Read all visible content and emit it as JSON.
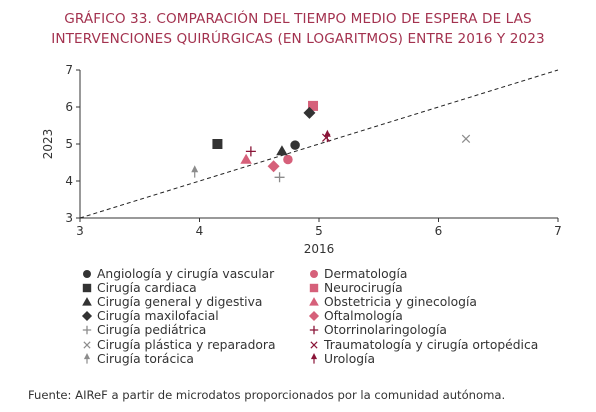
{
  "title_line1": "GRÁFICO 33. COMPARACIÓN DEL TIEMPO MEDIO DE ESPERA DE LAS",
  "title_line2": "INTERVENCIONES QUIRÚRGICAS (EN LOGARITMOS) ENTRE 2016 Y 2023",
  "source": "Fuente: AIReF a partir de microdatos proporcionados por la comunidad autónoma.",
  "colors": {
    "dark": "#333333",
    "pink": "#d6607a",
    "crimson": "#8a1538",
    "gray": "#8c8c8c",
    "title": "#a3324f"
  },
  "chart_data": {
    "type": "scatter",
    "xlabel": "2016",
    "ylabel": "2023",
    "xlim": [
      3,
      7
    ],
    "ylim": [
      3,
      7
    ],
    "xticks": [
      "3",
      "4",
      "5",
      "6",
      "7"
    ],
    "yticks": [
      "3",
      "4",
      "5",
      "6",
      "7"
    ],
    "reference_line": "dashed 45-degree line (y = x)",
    "grid": false,
    "legend_position": "bottom, two columns",
    "series": [
      {
        "name": "Angiología y cirugía vascular",
        "marker": "circle",
        "color": "#333333",
        "x": 4.8,
        "y": 4.97
      },
      {
        "name": "Dermatología",
        "marker": "circle",
        "color": "#d6607a",
        "x": 4.74,
        "y": 4.58
      },
      {
        "name": "Cirugía cardiaca",
        "marker": "square",
        "color": "#333333",
        "x": 4.15,
        "y": 5.0
      },
      {
        "name": "Neurocirugía",
        "marker": "square",
        "color": "#d6607a",
        "x": 4.95,
        "y": 6.03
      },
      {
        "name": "Cirugía general y digestiva",
        "marker": "triangle",
        "color": "#333333",
        "x": 4.69,
        "y": 4.81
      },
      {
        "name": "Obstetricia y ginecología",
        "marker": "triangle",
        "color": "#d6607a",
        "x": 4.39,
        "y": 4.58
      },
      {
        "name": "Cirugía maxilofacial",
        "marker": "diamond",
        "color": "#333333",
        "x": 4.92,
        "y": 5.84
      },
      {
        "name": "Oftalmología",
        "marker": "diamond",
        "color": "#d6607a",
        "x": 4.62,
        "y": 4.4
      },
      {
        "name": "Cirugía pediátrica",
        "marker": "plus",
        "color": "#8c8c8c",
        "x": 4.67,
        "y": 4.1
      },
      {
        "name": "Otorrinolaringología",
        "marker": "plus",
        "color": "#8a1538",
        "x": 4.43,
        "y": 4.8
      },
      {
        "name": "Cirugía plástica y reparadora",
        "marker": "x",
        "color": "#8c8c8c",
        "x": 6.23,
        "y": 5.14
      },
      {
        "name": "Traumatología y cirugía ortopédica",
        "marker": "x",
        "color": "#8a1538",
        "x": 5.06,
        "y": 5.17
      },
      {
        "name": "Cirugía torácica",
        "marker": "spike",
        "color": "#8c8c8c",
        "x": 3.96,
        "y": 4.24
      },
      {
        "name": "Urología",
        "marker": "spike",
        "color": "#8a1538",
        "x": 5.07,
        "y": 5.2
      }
    ]
  }
}
